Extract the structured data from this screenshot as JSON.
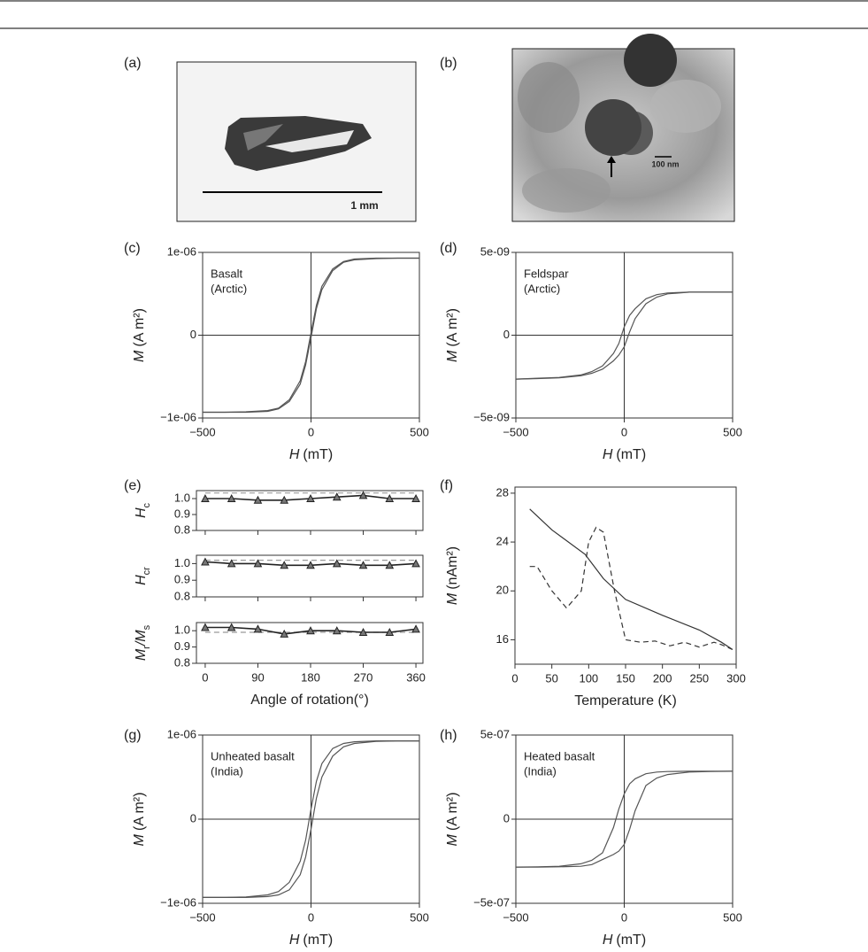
{
  "figure": {
    "panels": [
      {
        "label": "(a)",
        "scale_bar": "1 mm"
      },
      {
        "label": "(b)",
        "scale_bar": "100 nm"
      }
    ]
  },
  "chart_data": [
    {
      "type": "line",
      "panel_label": "(c)",
      "annotation": [
        "Basalt",
        "(Arctic)"
      ],
      "xlabel": [
        "H",
        "(mT)"
      ],
      "ylabel": [
        "M",
        "(A m²)"
      ],
      "x": [
        -500,
        -400,
        -300,
        -200,
        -150,
        -100,
        -50,
        -25,
        0,
        25,
        50,
        100,
        150,
        200,
        300,
        400,
        500
      ],
      "series": [
        {
          "color": "#555555",
          "values": [
            -9.3e-07,
            -9.3e-07,
            -9.25e-07,
            -9.1e-07,
            -8.8e-07,
            -7.8e-07,
            -5.5e-07,
            -3.2e-07,
            3e-08,
            3.6e-07,
            5.9e-07,
            8e-07,
            8.9e-07,
            9.2e-07,
            9.3e-07,
            9.3e-07,
            9.3e-07
          ]
        },
        {
          "color": "#555555",
          "values": [
            -9.3e-07,
            -9.3e-07,
            -9.3e-07,
            -9.2e-07,
            -8.9e-07,
            -8e-07,
            -5.9e-07,
            -3.6e-07,
            -3e-08,
            3.2e-07,
            5.5e-07,
            7.8e-07,
            8.8e-07,
            9.1e-07,
            9.25e-07,
            9.3e-07,
            9.3e-07
          ]
        }
      ],
      "xlim": [
        -500,
        500
      ],
      "ylim": [
        -1e-06,
        1e-06
      ],
      "xticks": [
        {
          "value": -500,
          "label": "−500"
        },
        0,
        500
      ],
      "yticks": [
        {
          "value": -1e-06,
          "label": "−1e-06"
        },
        0,
        {
          "value": 1e-06,
          "label": "1e-06"
        }
      ],
      "zero_lines": true
    },
    {
      "type": "line",
      "panel_label": "(d)",
      "annotation": [
        "Feldspar",
        "(Arctic)"
      ],
      "xlabel": [
        "H",
        "(mT)"
      ],
      "ylabel": [
        "M",
        "(A m²)"
      ],
      "x": [
        -500,
        -400,
        -300,
        -200,
        -150,
        -100,
        -50,
        -25,
        0,
        25,
        50,
        100,
        150,
        200,
        300,
        400,
        500
      ],
      "series": [
        {
          "color": "#555555",
          "values": [
            -2.65e-09,
            -2.6e-09,
            -2.55e-09,
            -2.4e-09,
            -2.2e-09,
            -1.85e-09,
            -1.1e-09,
            -5e-10,
            5e-10,
            1.2e-09,
            1.6e-09,
            2.2e-09,
            2.45e-09,
            2.55e-09,
            2.6e-09,
            2.6e-09,
            2.6e-09
          ]
        },
        {
          "color": "#555555",
          "values": [
            -2.65e-09,
            -2.62e-09,
            -2.58e-09,
            -2.45e-09,
            -2.3e-09,
            -2.05e-09,
            -1.55e-09,
            -1.2e-09,
            -7e-10,
            2e-10,
            1e-09,
            1.9e-09,
            2.3e-09,
            2.5e-09,
            2.6e-09,
            2.6e-09,
            2.6e-09
          ]
        }
      ],
      "xlim": [
        -500,
        500
      ],
      "ylim": [
        -5e-09,
        5e-09
      ],
      "xticks": [
        {
          "value": -500,
          "label": "−500"
        },
        0,
        500
      ],
      "yticks": [
        {
          "value": -5e-09,
          "label": "−5e-09"
        },
        0,
        {
          "value": 5e-09,
          "label": "5e-09"
        }
      ],
      "zero_lines": true
    },
    {
      "type": "line",
      "panel_label": "(e)",
      "ylabel": [
        "H",
        "c"
      ],
      "ylabel_sub": true,
      "x": [
        0,
        45,
        90,
        135,
        180,
        225,
        270,
        315,
        360
      ],
      "series": [
        {
          "color": "#999999",
          "dash": true,
          "values": [
            1.035,
            1.035,
            1.035,
            1.035,
            1.035,
            1.035,
            1.035,
            1.035,
            1.035
          ]
        },
        {
          "color": "#222222",
          "marker": "triangle",
          "values": [
            1.0,
            1.0,
            0.99,
            0.99,
            1.0,
            1.01,
            1.02,
            1.0,
            1.0
          ]
        }
      ],
      "xlim": [
        -15,
        372
      ],
      "ylim": [
        0.8,
        1.05
      ],
      "xticks": [
        0,
        90,
        180,
        270,
        360
      ],
      "yticks": [
        0.8,
        0.9,
        {
          "value": 1,
          "label": "1.0"
        }
      ],
      "xtick_labels": false
    },
    {
      "type": "line",
      "ylabel": [
        "H",
        "cr"
      ],
      "ylabel_sub": true,
      "x": [
        0,
        45,
        90,
        135,
        180,
        225,
        270,
        315,
        360
      ],
      "series": [
        {
          "color": "#999999",
          "dash": true,
          "values": [
            1.02,
            1.02,
            1.02,
            1.02,
            1.02,
            1.02,
            1.02,
            1.02,
            1.02
          ]
        },
        {
          "color": "#222222",
          "marker": "triangle",
          "values": [
            1.01,
            1.0,
            1.0,
            0.99,
            0.99,
            1.0,
            0.99,
            0.99,
            1.0
          ]
        }
      ],
      "xlim": [
        -15,
        372
      ],
      "ylim": [
        0.8,
        1.05
      ],
      "xticks": [
        0,
        90,
        180,
        270,
        360
      ],
      "yticks": [
        0.8,
        0.9,
        {
          "value": 1,
          "label": "1.0"
        }
      ],
      "xtick_labels": false
    },
    {
      "type": "line",
      "ylabel": [
        "M",
        "r",
        "/M",
        "s"
      ],
      "ylabel_sub": true,
      "xlabel": "Angle of rotation(°)",
      "x": [
        0,
        45,
        90,
        135,
        180,
        225,
        270,
        315,
        360
      ],
      "series": [
        {
          "color": "#999999",
          "dash": true,
          "values": [
            0.99,
            0.99,
            0.99,
            0.99,
            0.99,
            0.99,
            0.99,
            0.99,
            0.99
          ]
        },
        {
          "color": "#222222",
          "marker": "triangle",
          "values": [
            1.02,
            1.02,
            1.01,
            0.98,
            1.0,
            1.0,
            0.99,
            0.99,
            1.01
          ]
        }
      ],
      "xlim": [
        -15,
        372
      ],
      "ylim": [
        0.8,
        1.05
      ],
      "xticks": [
        0,
        90,
        180,
        270,
        360
      ],
      "yticks": [
        0.8,
        0.9,
        {
          "value": 1,
          "label": "1.0"
        }
      ],
      "xtick_labels": true
    },
    {
      "type": "line",
      "panel_label": "(f)",
      "xlabel": "Temperature (K)",
      "ylabel": [
        "M",
        "(nAm²)"
      ],
      "series": [
        {
          "color": "#333333",
          "x": [
            20,
            50,
            95,
            120,
            150,
            200,
            250,
            280,
            295
          ],
          "values": [
            26.7,
            25,
            23,
            21,
            19.3,
            18,
            16.8,
            15.8,
            15.2
          ]
        },
        {
          "color": "#333333",
          "dash": true,
          "x": [
            20,
            30,
            50,
            70,
            90,
            100,
            110,
            120,
            135,
            150,
            170,
            190,
            210,
            230,
            250,
            270,
            280,
            295
          ],
          "values": [
            22,
            22,
            20,
            18.6,
            20,
            24,
            25.2,
            24.8,
            20,
            16,
            15.8,
            15.9,
            15.5,
            15.8,
            15.4,
            15.8,
            15.6,
            15.2
          ]
        }
      ],
      "xlim": [
        0,
        300
      ],
      "ylim": [
        14,
        28.5
      ],
      "xticks": [
        0,
        50,
        100,
        150,
        200,
        250,
        300
      ],
      "yticks": [
        16,
        20,
        24,
        28
      ]
    },
    {
      "type": "line",
      "panel_label": "(g)",
      "annotation": [
        "Unheated basalt",
        "(India)"
      ],
      "xlabel": [
        "H",
        "(mT)"
      ],
      "ylabel": [
        "M",
        "(A m²)"
      ],
      "x": [
        -500,
        -400,
        -300,
        -200,
        -150,
        -100,
        -50,
        -25,
        0,
        25,
        50,
        100,
        150,
        200,
        300,
        400,
        500
      ],
      "series": [
        {
          "color": "#555555",
          "values": [
            -9.3e-07,
            -9.3e-07,
            -9.25e-07,
            -9e-07,
            -8.6e-07,
            -7.5e-07,
            -5e-07,
            -2.5e-07,
            1.2e-07,
            4.5e-07,
            6.6e-07,
            8.4e-07,
            9e-07,
            9.2e-07,
            9.3e-07,
            9.3e-07,
            9.3e-07
          ]
        },
        {
          "color": "#555555",
          "values": [
            -9.3e-07,
            -9.3e-07,
            -9.3e-07,
            -9.2e-07,
            -9e-07,
            -8.4e-07,
            -6.6e-07,
            -4.5e-07,
            -1.2e-07,
            2.5e-07,
            5e-07,
            7.5e-07,
            8.6e-07,
            9e-07,
            9.25e-07,
            9.3e-07,
            9.3e-07
          ]
        }
      ],
      "xlim": [
        -500,
        500
      ],
      "ylim": [
        -1e-06,
        1e-06
      ],
      "xticks": [
        {
          "value": -500,
          "label": "−500"
        },
        0,
        500
      ],
      "yticks": [
        {
          "value": -1e-06,
          "label": "−1e-06"
        },
        0,
        {
          "value": 1e-06,
          "label": "1e-06"
        }
      ],
      "zero_lines": true
    },
    {
      "type": "line",
      "panel_label": "(h)",
      "annotation": [
        "Heated basalt",
        "(India)"
      ],
      "xlabel": [
        "H",
        "(mT)"
      ],
      "ylabel": [
        "M",
        "(A m²)"
      ],
      "x": [
        -500,
        -400,
        -300,
        -200,
        -150,
        -100,
        -50,
        -25,
        0,
        25,
        50,
        100,
        150,
        200,
        300,
        400,
        500
      ],
      "series": [
        {
          "color": "#555555",
          "values": [
            -2.85e-07,
            -2.83e-07,
            -2.8e-07,
            -2.65e-07,
            -2.45e-07,
            -2e-07,
            -5e-08,
            6e-08,
            1.5e-07,
            2.1e-07,
            2.4e-07,
            2.7e-07,
            2.8e-07,
            2.83e-07,
            2.85e-07,
            2.85e-07,
            2.85e-07
          ]
        },
        {
          "color": "#555555",
          "values": [
            -2.85e-07,
            -2.85e-07,
            -2.83e-07,
            -2.8e-07,
            -2.7e-07,
            -2.4e-07,
            -2.1e-07,
            -1.9e-07,
            -1.5e-07,
            -6e-08,
            5e-08,
            2e-07,
            2.45e-07,
            2.65e-07,
            2.8e-07,
            2.83e-07,
            2.85e-07
          ]
        }
      ],
      "xlim": [
        -500,
        500
      ],
      "ylim": [
        -5e-07,
        5e-07
      ],
      "xticks": [
        {
          "value": -500,
          "label": "−500"
        },
        0,
        500
      ],
      "yticks": [
        {
          "value": -5e-07,
          "label": "−5e-07"
        },
        0,
        {
          "value": 5e-07,
          "label": "5e-07"
        }
      ],
      "zero_lines": true
    }
  ]
}
